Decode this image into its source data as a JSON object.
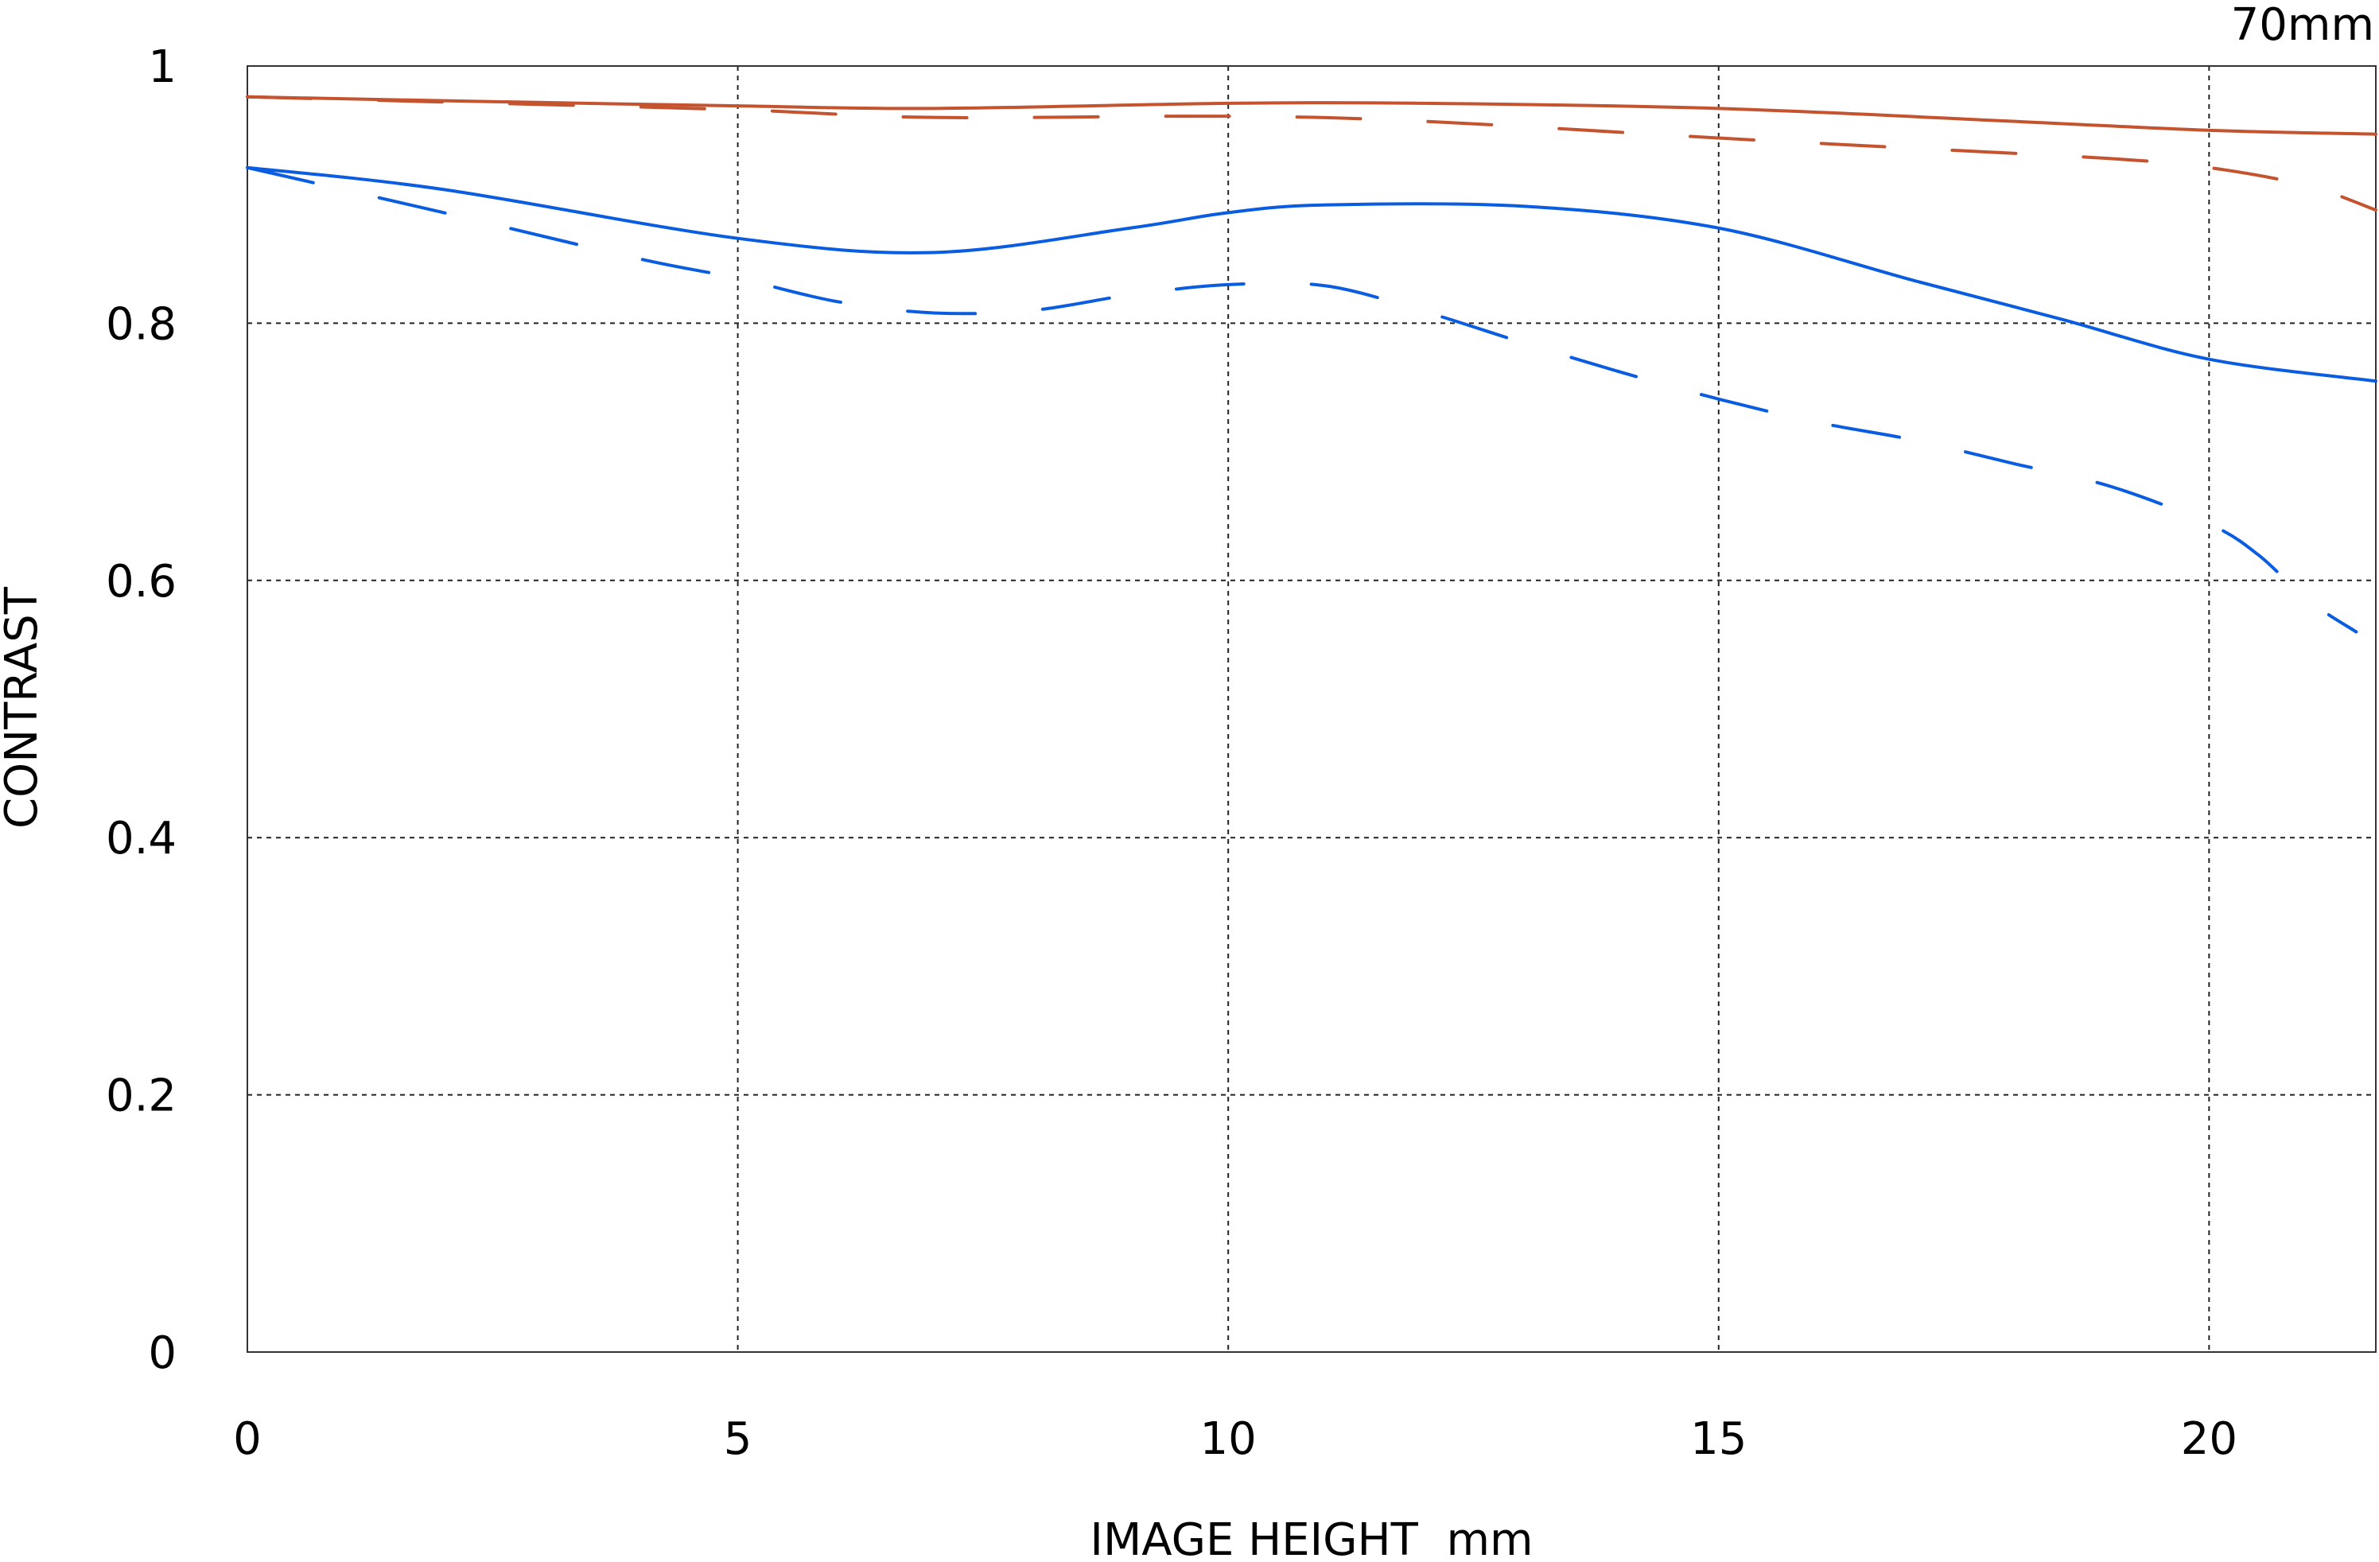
{
  "chart_data": {
    "type": "line",
    "title": "70mm",
    "xlabel": "IMAGE HEIGHT  mm",
    "ylabel": "CONTRAST",
    "xlim": [
      0,
      21.7
    ],
    "ylim": [
      0,
      1
    ],
    "xticks": [
      "0",
      "5",
      "10",
      "15",
      "20"
    ],
    "xtick_values": [
      0,
      5,
      10,
      15,
      20
    ],
    "yticks": [
      "0",
      "0.2",
      "0.4",
      "0.6",
      "0.8",
      "1"
    ],
    "ytick_values": [
      0,
      0.2,
      0.4,
      0.6,
      0.8,
      1
    ],
    "grid": true,
    "series": [
      {
        "name": "red-solid",
        "color": "#c4532f",
        "dashed": false,
        "x": [
          0,
          2,
          5,
          7,
          10,
          12,
          15,
          18,
          20,
          21.7
        ],
        "y": [
          0.976,
          0.973,
          0.969,
          0.967,
          0.971,
          0.971,
          0.967,
          0.957,
          0.95,
          0.947
        ]
      },
      {
        "name": "red-dashed",
        "color": "#c4532f",
        "dashed": true,
        "x": [
          0,
          2,
          5,
          7,
          10,
          12,
          15,
          17,
          19,
          20,
          21,
          21.7
        ],
        "y": [
          0.976,
          0.972,
          0.966,
          0.96,
          0.961,
          0.957,
          0.944,
          0.936,
          0.928,
          0.921,
          0.907,
          0.888
        ]
      },
      {
        "name": "blue-solid",
        "color": "#0a5ce0",
        "dashed": false,
        "x": [
          0,
          2,
          5,
          7,
          9,
          10,
          11,
          13,
          15,
          17,
          18.5,
          20,
          21.7
        ],
        "y": [
          0.921,
          0.904,
          0.866,
          0.855,
          0.874,
          0.886,
          0.892,
          0.891,
          0.874,
          0.833,
          0.803,
          0.772,
          0.755
        ]
      },
      {
        "name": "blue-dashed",
        "color": "#0a5ce0",
        "dashed": true,
        "x": [
          0,
          2,
          4,
          5,
          6,
          7,
          8,
          9,
          10,
          11,
          12,
          13,
          14,
          15,
          16,
          17,
          18,
          19,
          20,
          20.5,
          21,
          21.5
        ],
        "y": [
          0.921,
          0.886,
          0.85,
          0.835,
          0.817,
          0.808,
          0.81,
          0.822,
          0.83,
          0.829,
          0.809,
          0.785,
          0.762,
          0.741,
          0.723,
          0.709,
          0.691,
          0.673,
          0.644,
          0.62,
          0.585,
          0.56
        ]
      }
    ]
  }
}
